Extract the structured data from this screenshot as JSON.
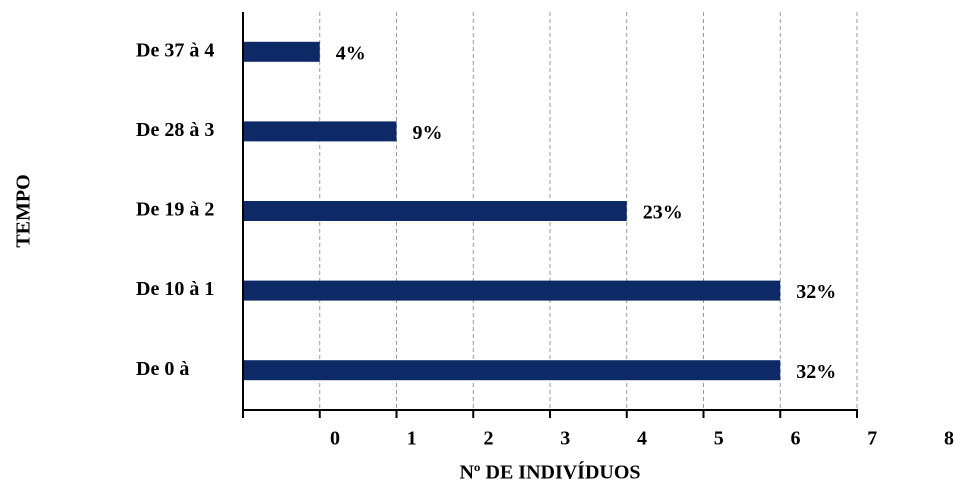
{
  "chart_data": {
    "type": "hbar",
    "categories": [
      "De 0 à",
      "De 10 à 1",
      "De 19 à 2",
      "De 28 à 3",
      "De 37 à 4"
    ],
    "values": [
      7,
      7,
      5,
      2,
      1
    ],
    "value_labels": [
      "32%",
      "32%",
      "23%",
      "9%",
      "4%"
    ],
    "color": "#0e2a66",
    "xlabel": "Nº DE INDIVÍDUOS",
    "ylabel": "TEMPO",
    "xlim": [
      0,
      8
    ],
    "xticks": [
      0,
      1,
      2,
      3,
      4,
      5,
      6,
      7,
      8
    ],
    "grid": true
  }
}
